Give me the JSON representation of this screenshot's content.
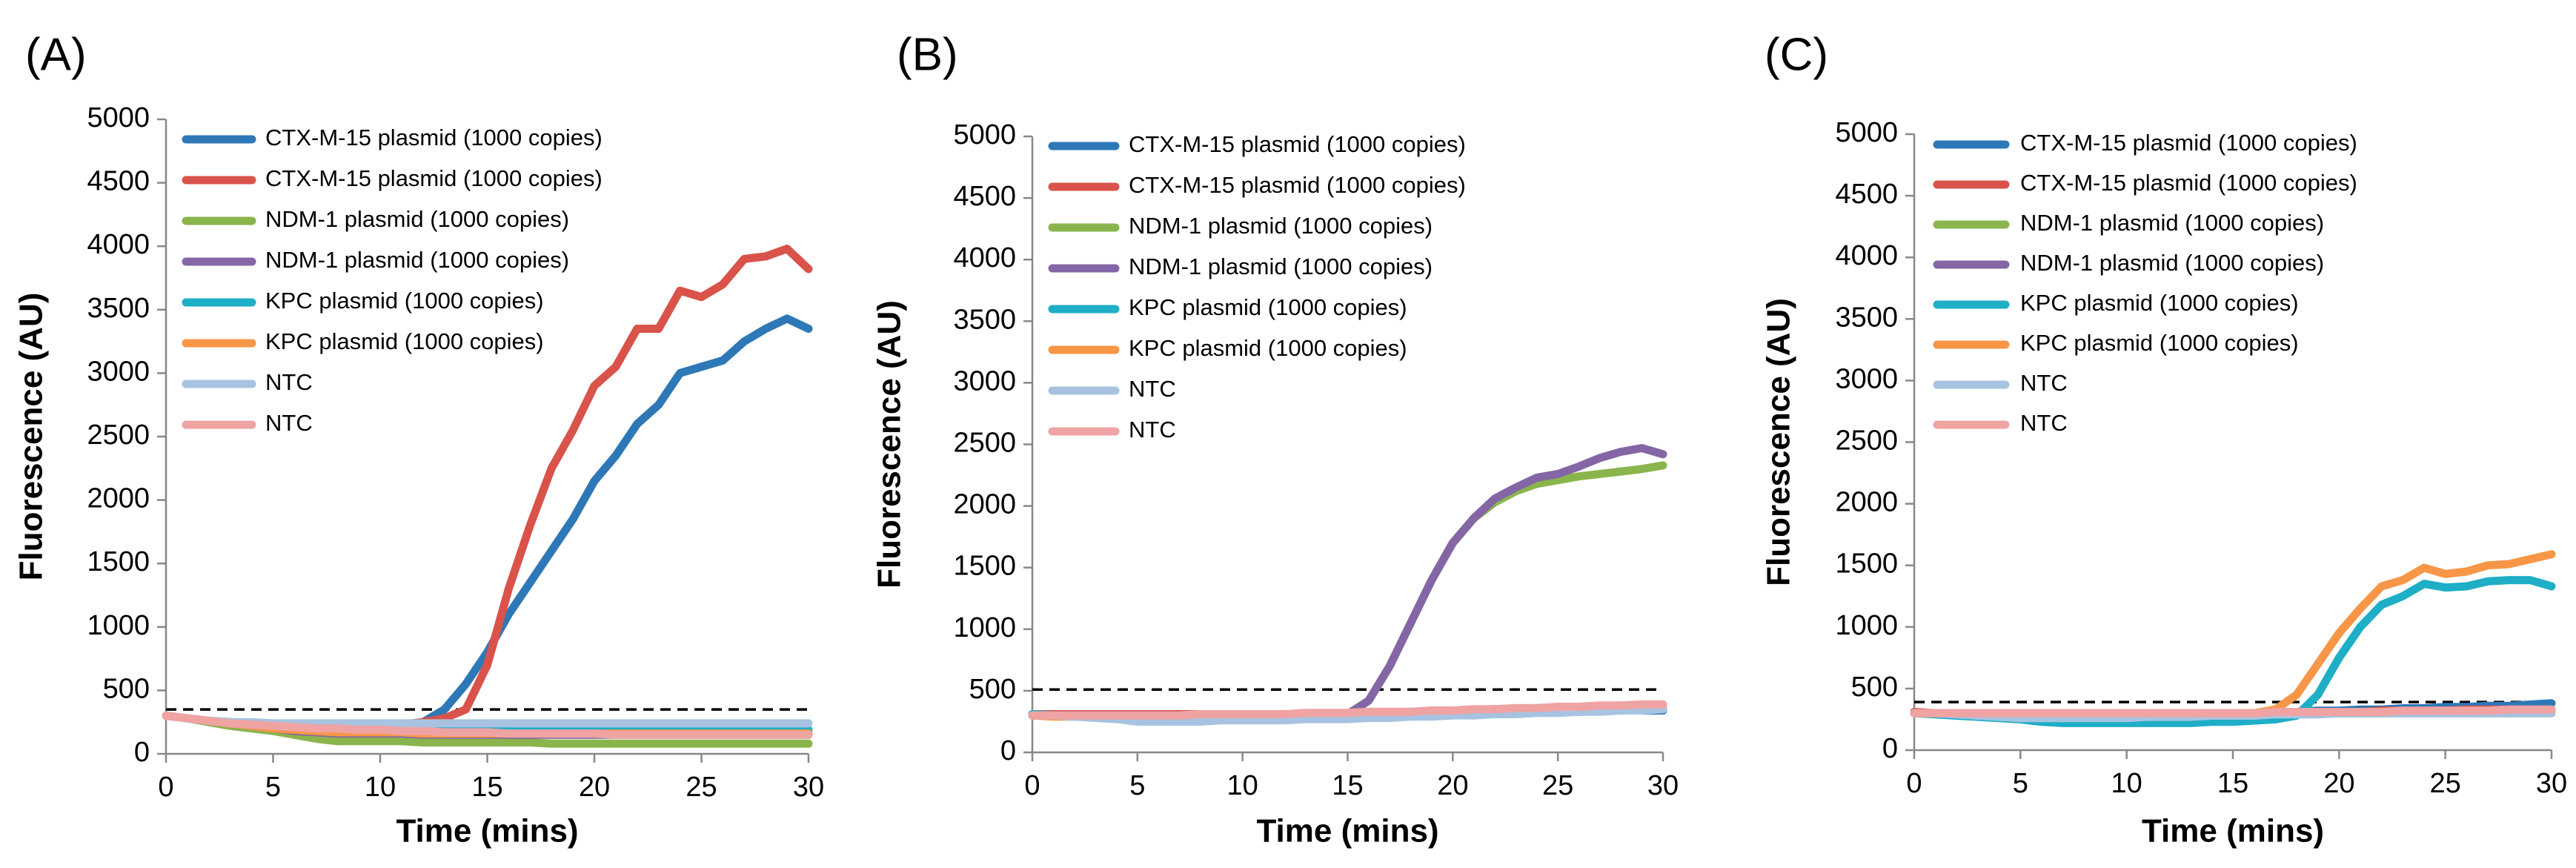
{
  "chart_data": [
    {
      "type": "line",
      "label": "(A)",
      "xlabel": "Time (mins)",
      "ylabel": "Fluorescence (AU)",
      "xlim": [
        0,
        30
      ],
      "ylim": [
        0,
        5000
      ],
      "xticks": [
        0,
        5,
        10,
        15,
        20,
        25,
        30
      ],
      "yticks": [
        0,
        500,
        1000,
        1500,
        2000,
        2500,
        3000,
        3500,
        4000,
        4500,
        5000
      ],
      "threshold": 350,
      "x": [
        0,
        1,
        2,
        3,
        4,
        5,
        6,
        7,
        8,
        9,
        10,
        11,
        12,
        13,
        14,
        15,
        16,
        17,
        18,
        19,
        20,
        21,
        22,
        23,
        24,
        25,
        26,
        27,
        28,
        29,
        30
      ],
      "series": [
        {
          "name": "CTX-M-15 plasmid (1000 copies)",
          "color": "#2e78b7",
          "values": [
            300,
            280,
            260,
            250,
            240,
            230,
            230,
            230,
            230,
            230,
            230,
            230,
            250,
            350,
            550,
            800,
            1100,
            1350,
            1600,
            1850,
            2150,
            2350,
            2600,
            2750,
            3000,
            3050,
            3100,
            3250,
            3350,
            3430,
            3350
          ]
        },
        {
          "name": "CTX-M-15 plasmid (1000 copies)",
          "color": "#d9534a",
          "values": [
            300,
            280,
            260,
            240,
            230,
            220,
            210,
            210,
            210,
            220,
            220,
            230,
            250,
            280,
            350,
            700,
            1300,
            1800,
            2250,
            2550,
            2900,
            3050,
            3350,
            3350,
            3650,
            3600,
            3700,
            3900,
            3920,
            3980,
            3820
          ]
        },
        {
          "name": "NDM-1 plasmid (1000 copies)",
          "color": "#8ab54c",
          "values": [
            300,
            280,
            250,
            220,
            200,
            180,
            150,
            120,
            100,
            100,
            100,
            100,
            90,
            90,
            90,
            90,
            90,
            90,
            80,
            80,
            80,
            80,
            80,
            80,
            80,
            80,
            80,
            80,
            80,
            80,
            80
          ]
        },
        {
          "name": "NDM-1 plasmid (1000 copies)",
          "color": "#8466a6",
          "values": [
            300,
            280,
            260,
            240,
            220,
            200,
            180,
            170,
            160,
            160,
            160,
            160,
            150,
            150,
            150,
            150,
            150,
            150,
            150,
            150,
            150,
            150,
            150,
            150,
            150,
            150,
            150,
            150,
            150,
            150,
            150
          ]
        },
        {
          "name": "KPC plasmid (1000 copies)",
          "color": "#1eaec6",
          "values": [
            300,
            280,
            260,
            250,
            240,
            230,
            220,
            210,
            200,
            200,
            200,
            200,
            200,
            200,
            200,
            190,
            190,
            190,
            190,
            190,
            190,
            190,
            190,
            190,
            190,
            190,
            190,
            190,
            190,
            190,
            190
          ]
        },
        {
          "name": "KPC plasmid (1000 copies)",
          "color": "#f79646",
          "values": [
            300,
            280,
            260,
            240,
            220,
            200,
            190,
            180,
            170,
            170,
            170,
            170,
            160,
            160,
            160,
            160,
            160,
            160,
            160,
            160,
            160,
            160,
            160,
            160,
            160,
            160,
            160,
            160,
            160,
            160,
            160
          ]
        },
        {
          "name": "NTC",
          "color": "#a7c3e1",
          "values": [
            300,
            280,
            260,
            250,
            250,
            240,
            240,
            240,
            240,
            240,
            240,
            240,
            240,
            240,
            240,
            240,
            240,
            240,
            240,
            240,
            240,
            240,
            240,
            240,
            240,
            240,
            240,
            240,
            240,
            240,
            240
          ]
        },
        {
          "name": "NTC",
          "color": "#efa3a3",
          "values": [
            300,
            280,
            260,
            240,
            230,
            220,
            210,
            200,
            200,
            190,
            190,
            180,
            180,
            170,
            170,
            170,
            160,
            160,
            160,
            160,
            160,
            150,
            150,
            150,
            150,
            150,
            150,
            150,
            150,
            150,
            150
          ]
        }
      ]
    },
    {
      "type": "line",
      "label": "(B)",
      "xlabel": "Time (mins)",
      "ylabel": "Fluorescence (AU)",
      "xlim": [
        0,
        30
      ],
      "ylim": [
        0,
        5000
      ],
      "xticks": [
        0,
        5,
        10,
        15,
        20,
        25,
        30
      ],
      "yticks": [
        0,
        500,
        1000,
        1500,
        2000,
        2500,
        3000,
        3500,
        4000,
        4500,
        5000
      ],
      "threshold": 510,
      "x": [
        0,
        1,
        2,
        3,
        4,
        5,
        6,
        7,
        8,
        9,
        10,
        11,
        12,
        13,
        14,
        15,
        16,
        17,
        18,
        19,
        20,
        21,
        22,
        23,
        24,
        25,
        26,
        27,
        28,
        29,
        30
      ],
      "series": [
        {
          "name": "CTX-M-15 plasmid (1000 copies)",
          "color": "#2e78b7",
          "values": [
            300,
            300,
            300,
            300,
            300,
            300,
            300,
            300,
            300,
            300,
            300,
            300,
            300,
            300,
            300,
            300,
            310,
            310,
            310,
            310,
            320,
            320,
            320,
            320,
            330,
            330,
            330,
            340,
            340,
            340,
            340
          ]
        },
        {
          "name": "CTX-M-15 plasmid (1000 copies)",
          "color": "#d9534a",
          "values": [
            310,
            310,
            310,
            310,
            310,
            310,
            310,
            310,
            310,
            310,
            310,
            310,
            310,
            310,
            310,
            310,
            320,
            320,
            320,
            320,
            330,
            330,
            330,
            330,
            340,
            340,
            340,
            350,
            350,
            350,
            350
          ]
        },
        {
          "name": "NDM-1 plasmid (1000 copies)",
          "color": "#8ab54c",
          "values": [
            300,
            300,
            300,
            300,
            300,
            300,
            300,
            300,
            300,
            300,
            300,
            300,
            300,
            300,
            300,
            310,
            420,
            700,
            1050,
            1400,
            1700,
            1900,
            2030,
            2120,
            2180,
            2210,
            2240,
            2260,
            2280,
            2300,
            2330
          ]
        },
        {
          "name": "NDM-1 plasmid (1000 copies)",
          "color": "#8466a6",
          "values": [
            300,
            300,
            300,
            300,
            300,
            300,
            300,
            300,
            300,
            300,
            300,
            300,
            300,
            300,
            300,
            310,
            420,
            700,
            1050,
            1400,
            1700,
            1900,
            2060,
            2150,
            2230,
            2260,
            2320,
            2390,
            2440,
            2470,
            2420
          ]
        },
        {
          "name": "KPC plasmid (1000 copies)",
          "color": "#1eaec6",
          "values": [
            310,
            300,
            300,
            300,
            300,
            300,
            300,
            300,
            300,
            300,
            300,
            300,
            300,
            300,
            310,
            310,
            320,
            320,
            330,
            330,
            340,
            340,
            350,
            350,
            360,
            360,
            370,
            370,
            380,
            380,
            380
          ]
        },
        {
          "name": "KPC plasmid (1000 copies)",
          "color": "#f79646",
          "values": [
            300,
            290,
            290,
            290,
            290,
            290,
            290,
            290,
            300,
            300,
            300,
            300,
            300,
            300,
            300,
            310,
            310,
            320,
            320,
            330,
            330,
            340,
            340,
            350,
            350,
            360,
            360,
            370,
            370,
            380,
            380
          ]
        },
        {
          "name": "NTC",
          "color": "#a7c3e1",
          "values": [
            300,
            300,
            290,
            280,
            270,
            250,
            250,
            250,
            250,
            260,
            260,
            260,
            260,
            270,
            270,
            270,
            280,
            280,
            290,
            290,
            300,
            300,
            310,
            310,
            320,
            320,
            330,
            330,
            340,
            340,
            350
          ]
        },
        {
          "name": "NTC",
          "color": "#efa3a3",
          "values": [
            300,
            300,
            300,
            300,
            300,
            300,
            300,
            300,
            310,
            310,
            310,
            310,
            310,
            320,
            320,
            320,
            330,
            330,
            330,
            340,
            340,
            350,
            350,
            360,
            360,
            370,
            370,
            380,
            380,
            390,
            390
          ]
        }
      ]
    },
    {
      "type": "line",
      "label": "(C)",
      "xlabel": "Time (mins)",
      "ylabel": "Fluorescence (AU)",
      "xlim": [
        0,
        30
      ],
      "ylim": [
        0,
        5000
      ],
      "xticks": [
        0,
        5,
        10,
        15,
        20,
        25,
        30
      ],
      "yticks": [
        0,
        500,
        1000,
        1500,
        2000,
        2500,
        3000,
        3500,
        4000,
        4500,
        5000
      ],
      "threshold": 390,
      "x": [
        0,
        1,
        2,
        3,
        4,
        5,
        6,
        7,
        8,
        9,
        10,
        11,
        12,
        13,
        14,
        15,
        16,
        17,
        18,
        19,
        20,
        21,
        22,
        23,
        24,
        25,
        26,
        27,
        28,
        29,
        30
      ],
      "series": [
        {
          "name": "CTX-M-15 plasmid (1000 copies)",
          "color": "#2e78b7",
          "values": [
            300,
            300,
            300,
            300,
            300,
            300,
            300,
            300,
            300,
            300,
            300,
            300,
            300,
            300,
            300,
            300,
            300,
            310,
            310,
            320,
            320,
            330,
            330,
            340,
            340,
            350,
            350,
            360,
            360,
            370,
            380
          ]
        },
        {
          "name": "CTX-M-15 plasmid (1000 copies)",
          "color": "#d9534a",
          "values": [
            310,
            300,
            300,
            300,
            300,
            300,
            300,
            300,
            300,
            300,
            300,
            300,
            300,
            300,
            300,
            300,
            300,
            300,
            310,
            310,
            310,
            310,
            320,
            320,
            320,
            320,
            330,
            330,
            330,
            330,
            330
          ]
        },
        {
          "name": "NDM-1 plasmid (1000 copies)",
          "color": "#8ab54c",
          "values": [
            300,
            300,
            290,
            290,
            290,
            290,
            290,
            290,
            290,
            290,
            290,
            290,
            290,
            290,
            290,
            290,
            300,
            300,
            300,
            300,
            300,
            300,
            300,
            300,
            300,
            300,
            300,
            300,
            300,
            300,
            300
          ]
        },
        {
          "name": "NDM-1 plasmid (1000 copies)",
          "color": "#8466a6",
          "values": [
            300,
            300,
            300,
            300,
            300,
            300,
            300,
            300,
            300,
            300,
            300,
            300,
            300,
            300,
            300,
            300,
            300,
            300,
            300,
            300,
            300,
            300,
            300,
            300,
            300,
            300,
            300,
            300,
            300,
            300,
            300
          ]
        },
        {
          "name": "KPC plasmid (1000 copies)",
          "color": "#1eaec6",
          "values": [
            300,
            290,
            280,
            270,
            260,
            250,
            230,
            220,
            220,
            220,
            220,
            220,
            220,
            220,
            230,
            230,
            240,
            250,
            280,
            450,
            750,
            1000,
            1180,
            1250,
            1350,
            1320,
            1330,
            1370,
            1380,
            1380,
            1330
          ]
        },
        {
          "name": "KPC plasmid (1000 copies)",
          "color": "#f79646",
          "values": [
            300,
            300,
            300,
            300,
            300,
            300,
            300,
            300,
            300,
            300,
            300,
            300,
            300,
            300,
            300,
            300,
            300,
            330,
            450,
            700,
            950,
            1150,
            1330,
            1380,
            1480,
            1430,
            1450,
            1500,
            1510,
            1550,
            1590
          ]
        },
        {
          "name": "NTC",
          "color": "#a7c3e1",
          "values": [
            300,
            300,
            290,
            280,
            270,
            260,
            260,
            260,
            260,
            260,
            260,
            270,
            270,
            270,
            280,
            280,
            280,
            290,
            290,
            290,
            300,
            300,
            300,
            300,
            300,
            300,
            300,
            300,
            300,
            300,
            300
          ]
        },
        {
          "name": "NTC",
          "color": "#efa3a3",
          "values": [
            300,
            300,
            300,
            300,
            300,
            300,
            300,
            300,
            300,
            300,
            300,
            300,
            300,
            300,
            300,
            300,
            300,
            310,
            310,
            310,
            310,
            310,
            310,
            320,
            320,
            320,
            320,
            320,
            330,
            330,
            330
          ]
        }
      ]
    }
  ]
}
